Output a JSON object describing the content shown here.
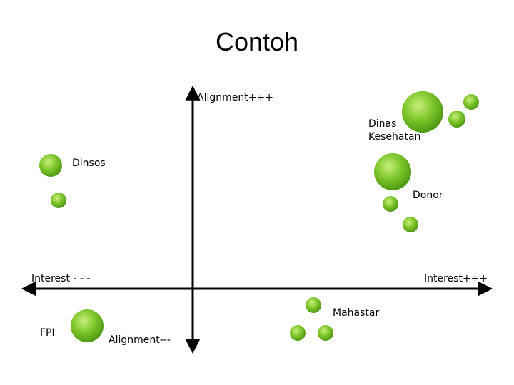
{
  "title": "Contoh",
  "axes": {
    "y_positive": "Alignment+++",
    "y_negative": "Alignment---",
    "x_negative": "Interest - - -",
    "x_positive": "Interest+++"
  },
  "stakeholders": {
    "dinas_kesehatan": [
      "Dinas",
      "Kesehatan"
    ],
    "dinsos": "Dinsos",
    "donor": "Donor",
    "mahastar": "Mahastar",
    "fpi": "FPI"
  },
  "colors": {
    "circle_light": "#c8f07a",
    "circle_mid": "#7cc42a",
    "circle_dark": "#4f9a14",
    "axis": "#000000"
  }
}
